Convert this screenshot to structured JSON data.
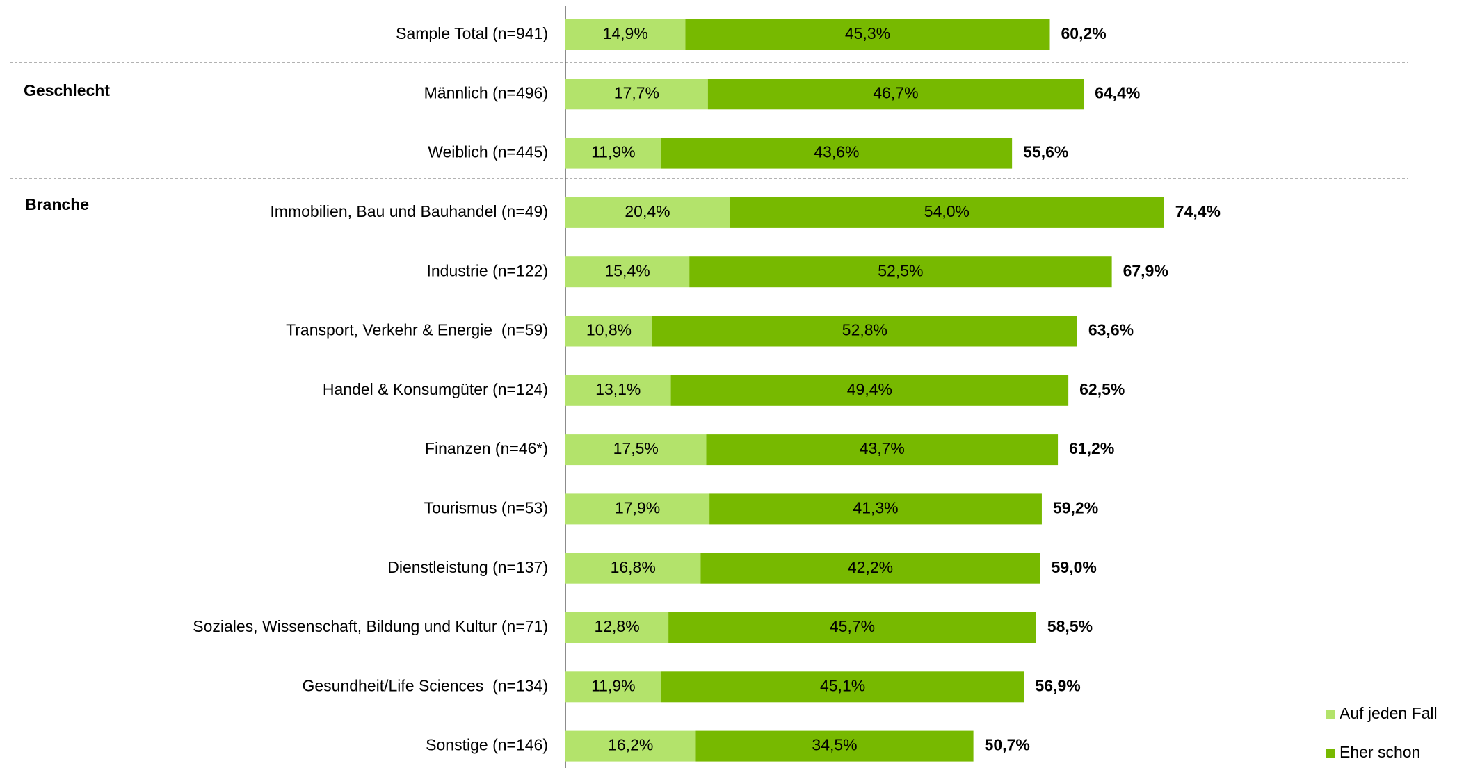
{
  "chart_data": {
    "type": "stacked_bar_horizontal",
    "categories": [
      "Sample Total (n=941)",
      "Männlich (n=496)",
      "Weiblich (n=445)",
      "Immobilien, Bau und Bauhandel (n=49)",
      "Industrie (n=122)",
      "Transport, Verkehr & Energie  (n=59)",
      "Handel & Konsumgüter (n=124)",
      "Finanzen (n=46*)",
      "Tourismus (n=53)",
      "Dienstleistung (n=137)",
      "Soziales, Wissenschaft, Bildung und Kultur (n=71)",
      "Gesundheit/Life Sciences  (n=134)",
      "Sonstige (n=146)"
    ],
    "group_labels": [
      "Geschlecht",
      "Branche"
    ],
    "series": [
      {
        "name": "Auf jeden Fall",
        "color": "#b3e36b",
        "values": [
          14.9,
          17.7,
          11.9,
          20.4,
          15.4,
          10.8,
          13.1,
          17.5,
          17.9,
          16.8,
          12.8,
          11.9,
          16.2
        ],
        "value_labels": [
          "14,9%",
          "17,7%",
          "11,9%",
          "20,4%",
          "15,4%",
          "10,8%",
          "13,1%",
          "17,5%",
          "17,9%",
          "16,8%",
          "12,8%",
          "11,9%",
          "16,2%"
        ]
      },
      {
        "name": "Eher schon",
        "color": "#77b900",
        "values": [
          45.3,
          46.7,
          43.6,
          54.0,
          52.5,
          52.8,
          49.4,
          43.7,
          41.3,
          42.2,
          45.7,
          45.1,
          34.5
        ],
        "value_labels": [
          "45,3%",
          "46,7%",
          "43,6%",
          "54,0%",
          "52,5%",
          "52,8%",
          "49,4%",
          "43,7%",
          "41,3%",
          "42,2%",
          "45,7%",
          "45,1%",
          "34,5%"
        ]
      }
    ],
    "totals": {
      "values": [
        60.2,
        64.4,
        55.6,
        74.4,
        67.9,
        63.6,
        62.5,
        61.2,
        59.2,
        59.0,
        58.5,
        56.9,
        50.7
      ],
      "value_labels": [
        "60,2%",
        "64,4%",
        "55,6%",
        "74,4%",
        "67,9%",
        "63,6%",
        "62,5%",
        "61,2%",
        "59,2%",
        "59,0%",
        "58,5%",
        "56,9%",
        "50,7%"
      ]
    },
    "xlim": [
      0,
      100
    ],
    "legend": "bottom-right"
  }
}
